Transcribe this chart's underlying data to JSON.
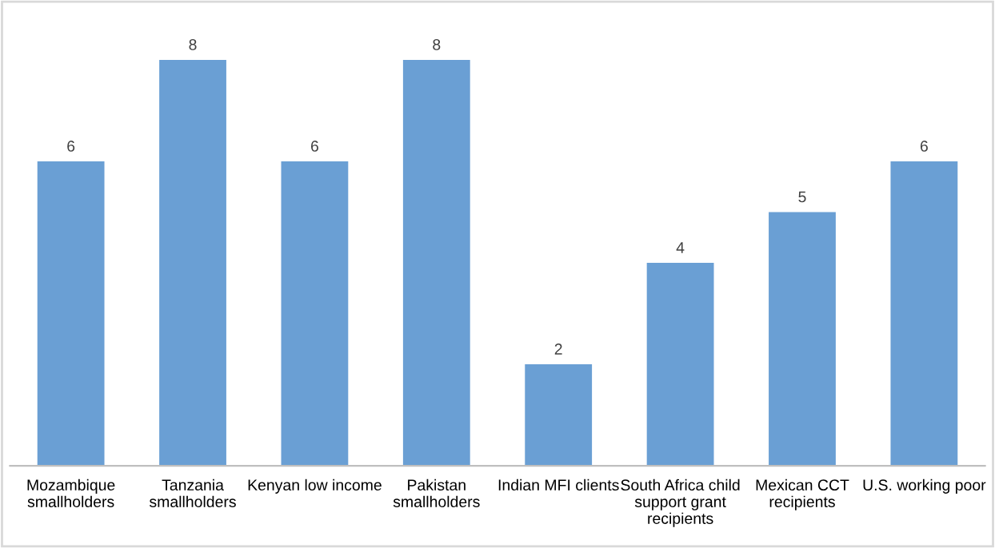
{
  "chart_data": {
    "type": "bar",
    "categories": [
      "Mozambique smallholders",
      "Tanzania smallholders",
      "Kenyan low income",
      "Pakistan smallholders",
      "Indian MFI clients",
      "South Africa child support grant recipients",
      "Mexican CCT recipients",
      "U.S. working poor"
    ],
    "values": [
      6,
      8,
      6,
      8,
      2,
      4,
      5,
      6
    ],
    "color": "#6a9fd4",
    "data_labels": true,
    "grid": false,
    "legend": false
  }
}
